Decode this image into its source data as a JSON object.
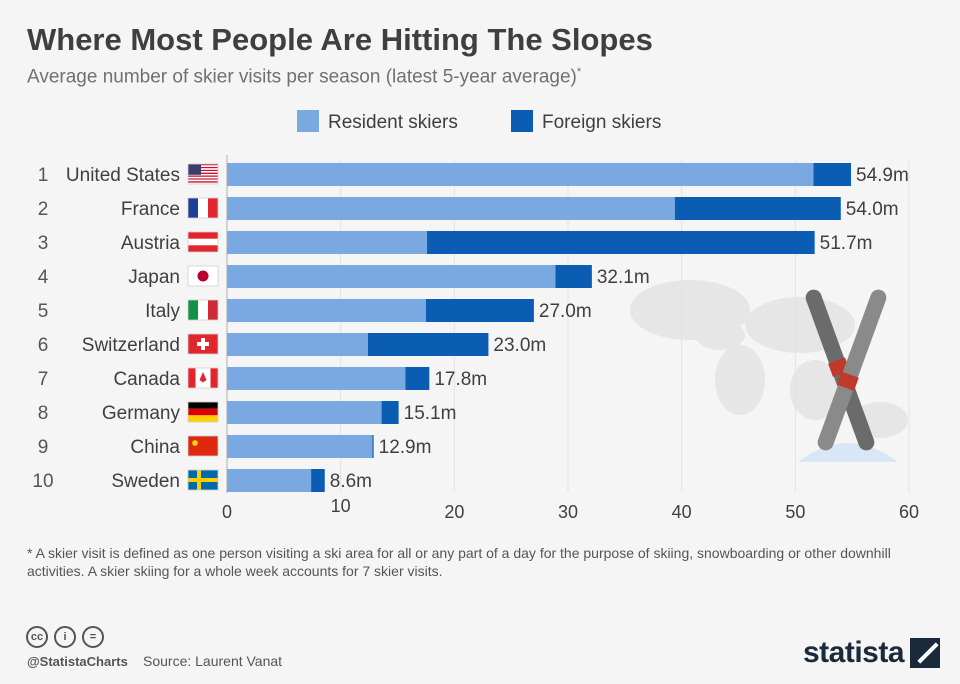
{
  "title": "Where Most People Are Hitting The Slopes",
  "subtitle": "Average number of skier visits per season (latest 5-year average)",
  "subtitle_mark": "*",
  "footnote": "* A skier visit is defined as one person visiting a ski area for all or any part of a day for the purpose of skiing, snowboarding or other downhill activities. A skier skiing for a whole week accounts for 7 skier visits.",
  "credits": {
    "handle": "@StatistaCharts",
    "source": "Source: Laurent Vanat",
    "brand": "statista"
  },
  "colors": {
    "resident": "#7aa8e0",
    "foreign": "#0b5cb3",
    "text": "#3f3f3f"
  },
  "chart_data": {
    "type": "bar",
    "orientation": "horizontal",
    "stacked": true,
    "legend": [
      "Resident skiers",
      "Foreign skiers"
    ],
    "ranks": [
      "1",
      "2",
      "3",
      "4",
      "5",
      "6",
      "7",
      "8",
      "9",
      "10"
    ],
    "categories": [
      "United States",
      "France",
      "Austria",
      "Japan",
      "Italy",
      "Switzerland",
      "Canada",
      "Germany",
      "China",
      "Sweden"
    ],
    "flags": [
      "us-flag",
      "france-flag",
      "austria-flag",
      "japan-flag",
      "italy-flag",
      "switzerland-flag",
      "canada-flag",
      "germany-flag",
      "china-flag",
      "sweden-flag"
    ],
    "series": [
      {
        "name": "Resident skiers",
        "values": [
          51.6,
          39.4,
          17.6,
          28.9,
          17.5,
          12.4,
          15.7,
          13.6,
          12.8,
          7.4
        ]
      },
      {
        "name": "Foreign skiers",
        "values": [
          3.3,
          14.6,
          34.1,
          3.2,
          9.5,
          10.6,
          2.1,
          1.5,
          0.1,
          1.2
        ]
      }
    ],
    "totals": [
      54.9,
      54.0,
      51.7,
      32.1,
      27.0,
      23.0,
      17.8,
      15.1,
      12.9,
      8.6
    ],
    "total_labels": [
      "54.9m",
      "54.0m",
      "51.7m",
      "32.1m",
      "27.0m",
      "23.0m",
      "17.8m",
      "15.1m",
      "12.9m",
      "8.6m"
    ],
    "xlim": [
      0,
      60
    ],
    "xticks": [
      "0",
      "10",
      "20",
      "30",
      "40",
      "50",
      "60"
    ],
    "xtick_values": [
      0,
      10,
      20,
      30,
      40,
      50,
      60
    ]
  }
}
